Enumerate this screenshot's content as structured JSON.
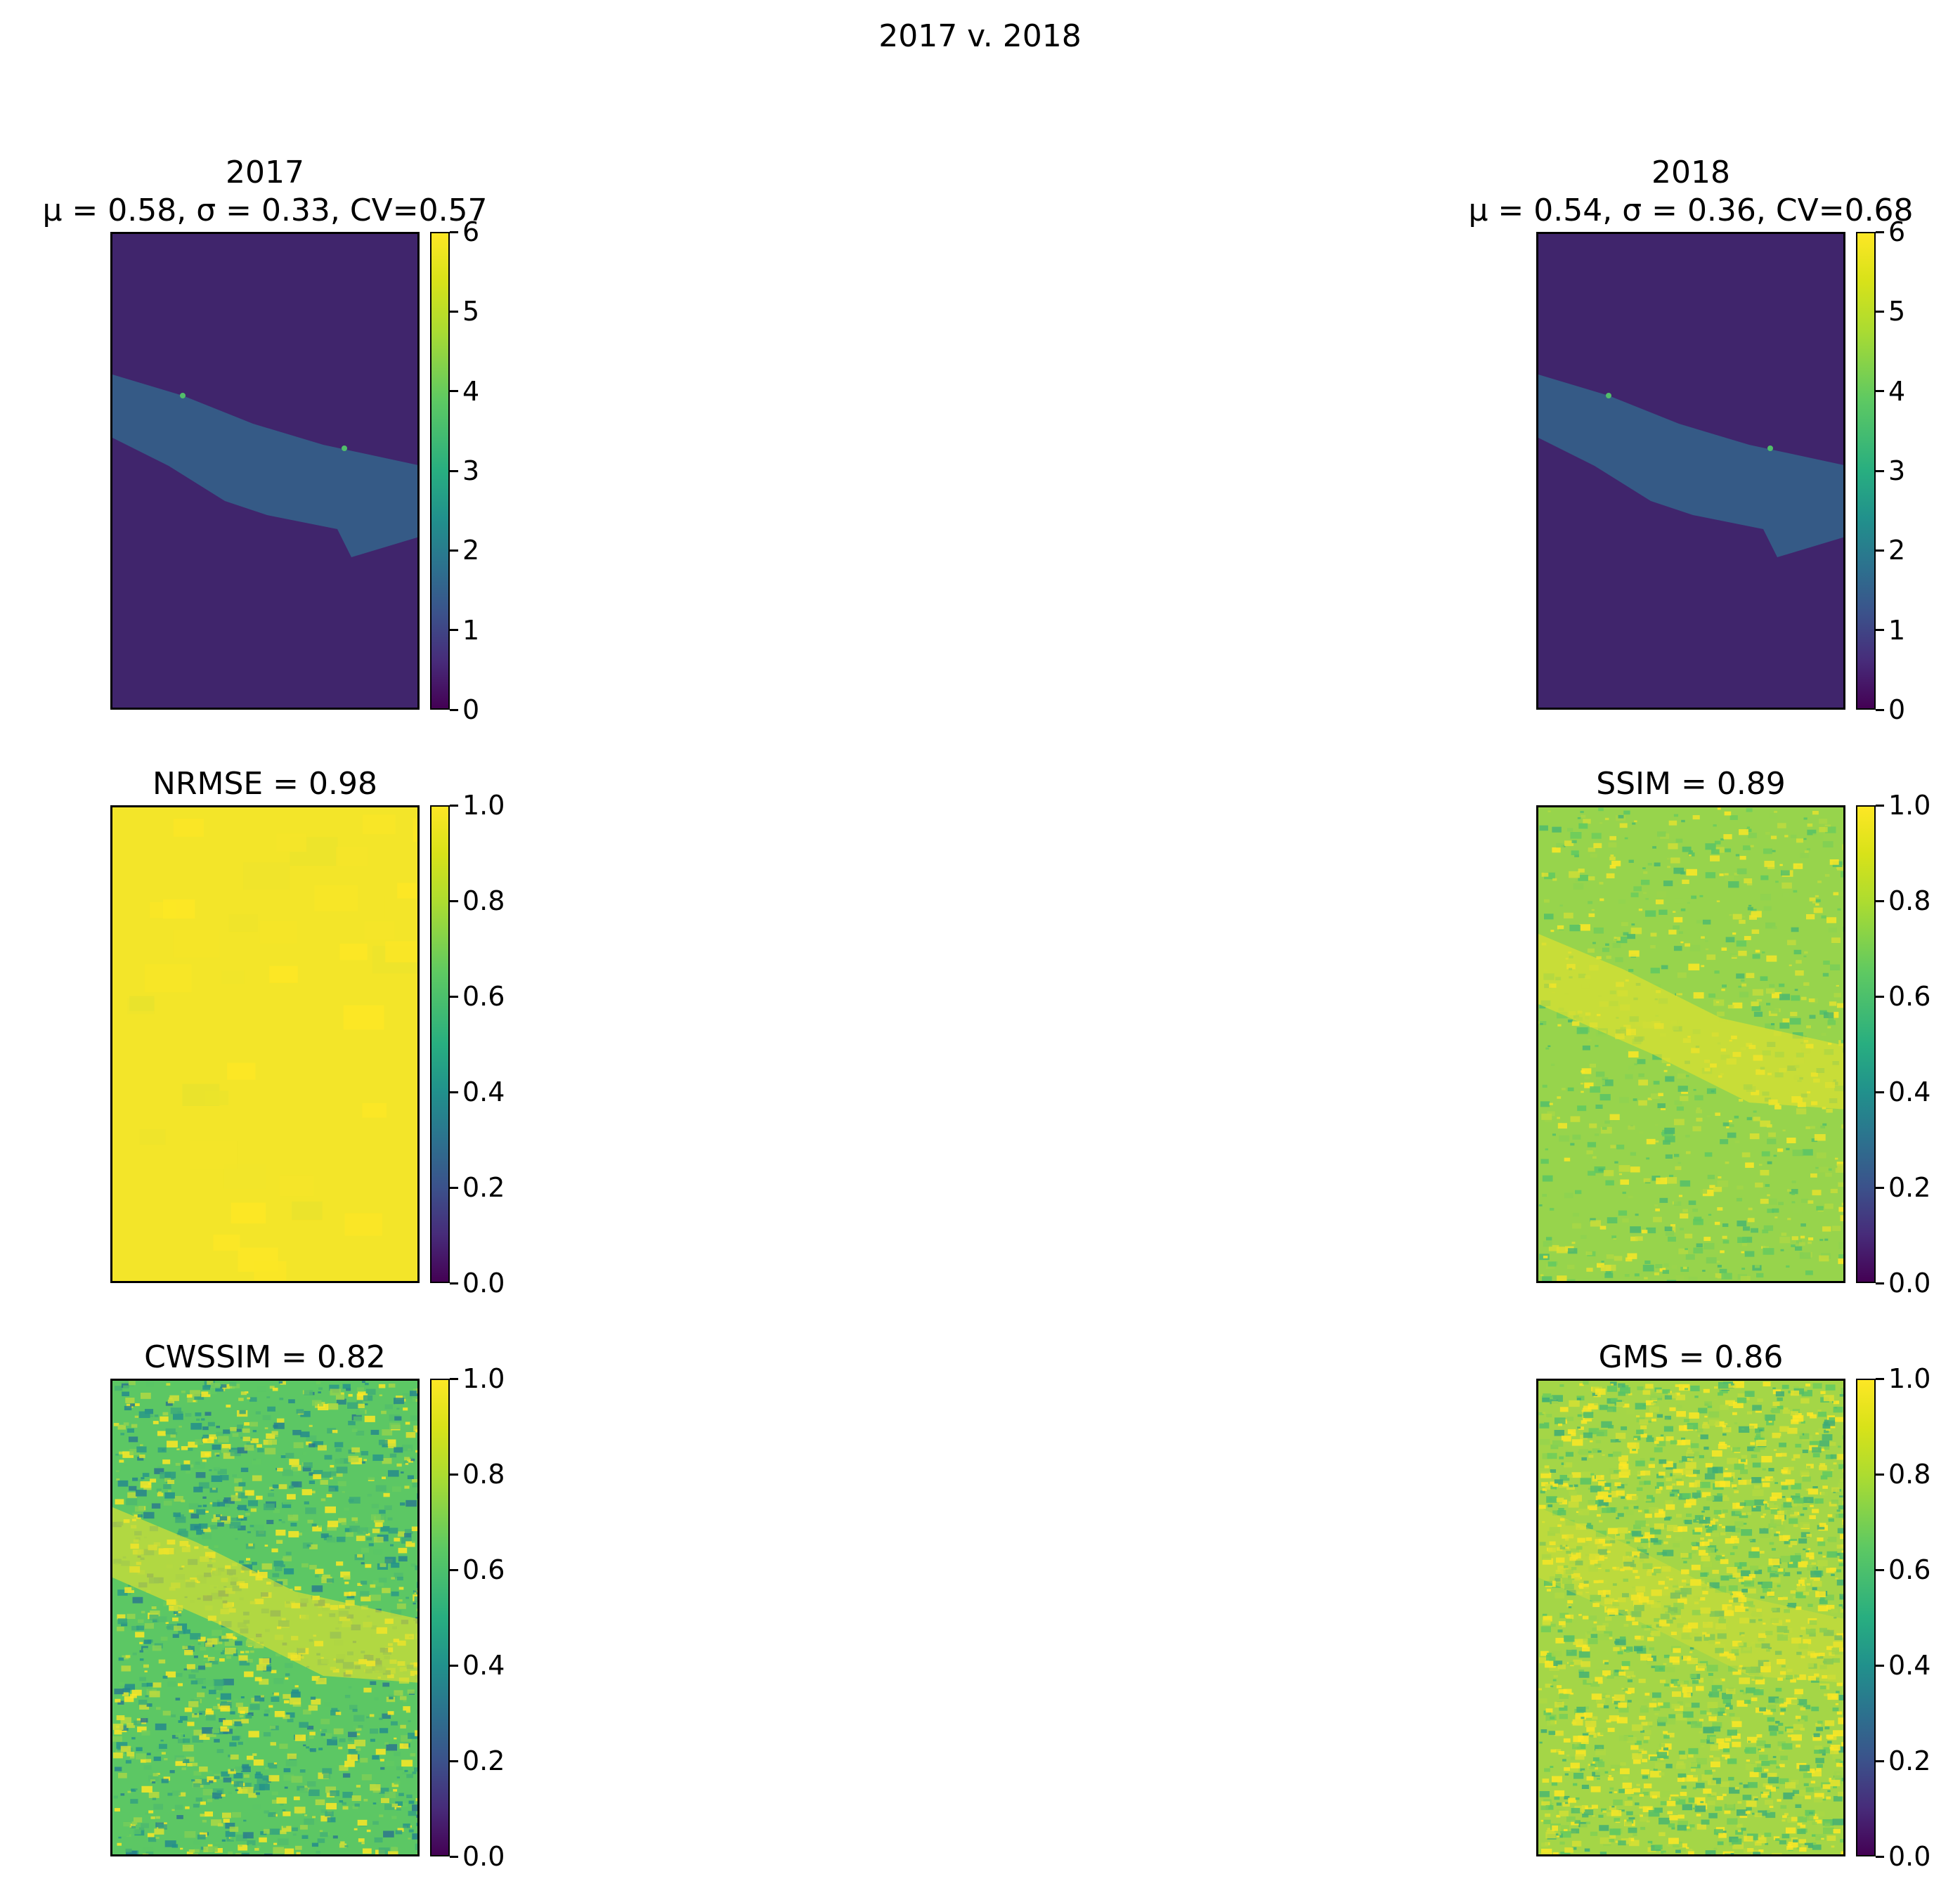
{
  "suptitle": "2017 v. 2018",
  "panels": [
    {
      "title": "2017",
      "subtitle": "μ = 0.58, σ = 0.33, CV=0.57",
      "map": "intensity",
      "colorbar_ticks": [
        "0",
        "1",
        "2",
        "3",
        "4",
        "5",
        "6"
      ]
    },
    {
      "title": "2018",
      "subtitle": "μ = 0.54, σ = 0.36, CV=0.68",
      "map": "intensity",
      "colorbar_ticks": [
        "0",
        "1",
        "2",
        "3",
        "4",
        "5",
        "6"
      ]
    },
    {
      "title": "NRMSE = 0.98",
      "map": "uniform-high",
      "colorbar_ticks": [
        "0.0",
        "0.2",
        "0.4",
        "0.6",
        "0.8",
        "1.0"
      ]
    },
    {
      "title": "SSIM = 0.89",
      "map": "textured-high",
      "colorbar_ticks": [
        "0.0",
        "0.2",
        "0.4",
        "0.6",
        "0.8",
        "1.0"
      ]
    },
    {
      "title": "CWSSIM = 0.82",
      "map": "noisy-mid",
      "colorbar_ticks": [
        "0.0",
        "0.2",
        "0.4",
        "0.6",
        "0.8",
        "1.0"
      ]
    },
    {
      "title": "GMS = 0.86",
      "map": "noisy-high",
      "colorbar_ticks": [
        "0.0",
        "0.2",
        "0.4",
        "0.6",
        "0.8",
        "1.0"
      ]
    }
  ],
  "chart_data": {
    "type": "heatmap",
    "colormap": "viridis",
    "title": "2017 v. 2018",
    "images": [
      {
        "name": "2017",
        "mean": 0.58,
        "std": 0.33,
        "cv": 0.57,
        "vmin": 0,
        "vmax": 6
      },
      {
        "name": "2018",
        "mean": 0.54,
        "std": 0.36,
        "cv": 0.68,
        "vmin": 0,
        "vmax": 6
      },
      {
        "name": "NRMSE",
        "score": 0.98,
        "vmin": 0.0,
        "vmax": 1.0
      },
      {
        "name": "SSIM",
        "score": 0.89,
        "vmin": 0.0,
        "vmax": 1.0
      },
      {
        "name": "CWSSIM",
        "score": 0.82,
        "vmin": 0.0,
        "vmax": 1.0
      },
      {
        "name": "GMS",
        "score": 0.86,
        "vmin": 0.0,
        "vmax": 1.0
      }
    ]
  }
}
